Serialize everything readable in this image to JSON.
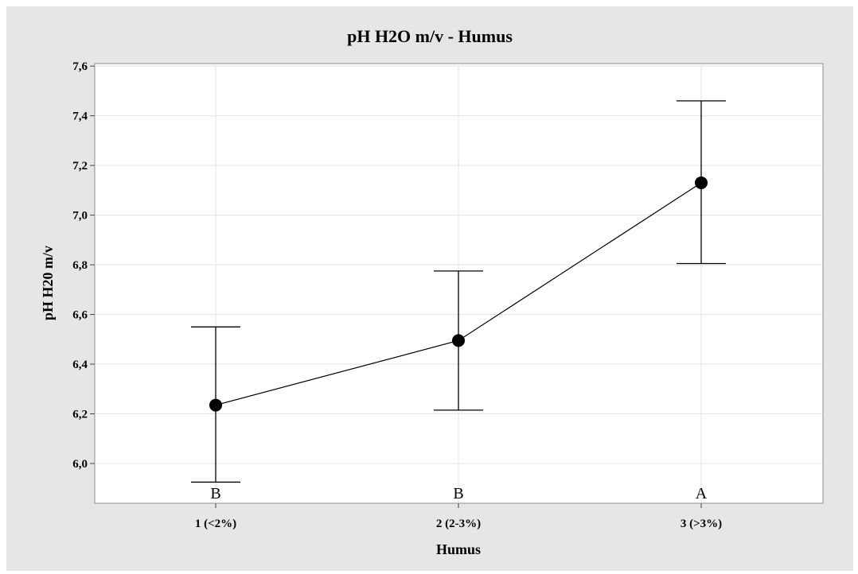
{
  "chart_data": {
    "type": "line",
    "title": "pH H2O m/v - Humus",
    "xlabel": "Humus",
    "ylabel": "pH H20 m/v",
    "categories": [
      "1 (<2%)",
      "2 (2-3%)",
      "3 (>3%)"
    ],
    "y_ticks": [
      "6,0",
      "6,2",
      "6,4",
      "6,6",
      "6,8",
      "7,0",
      "7,2",
      "7,4",
      "7,6"
    ],
    "y_tick_values": [
      6.0,
      6.2,
      6.4,
      6.6,
      6.8,
      7.0,
      7.2,
      7.4,
      7.6
    ],
    "ylim": [
      5.84,
      7.61
    ],
    "grid": true,
    "series": [
      {
        "values": [
          6.235,
          6.495,
          7.13
        ],
        "error_low": [
          5.925,
          6.215,
          6.805
        ],
        "error_high": [
          6.55,
          6.775,
          7.46
        ]
      }
    ],
    "group_letters": [
      "B",
      "B",
      "A"
    ],
    "colors": {
      "background": "#e6e6e6",
      "plot_area": "#ffffff",
      "marker": "#000000",
      "grid": "#e3e3e3"
    }
  }
}
